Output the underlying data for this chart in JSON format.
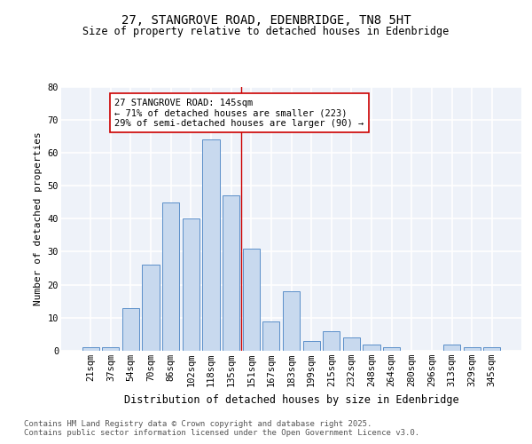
{
  "title": "27, STANGROVE ROAD, EDENBRIDGE, TN8 5HT",
  "subtitle": "Size of property relative to detached houses in Edenbridge",
  "xlabel": "Distribution of detached houses by size in Edenbridge",
  "ylabel": "Number of detached properties",
  "categories": [
    "21sqm",
    "37sqm",
    "54sqm",
    "70sqm",
    "86sqm",
    "102sqm",
    "118sqm",
    "135sqm",
    "151sqm",
    "167sqm",
    "183sqm",
    "199sqm",
    "215sqm",
    "232sqm",
    "248sqm",
    "264sqm",
    "280sqm",
    "296sqm",
    "313sqm",
    "329sqm",
    "345sqm"
  ],
  "values": [
    1,
    1,
    13,
    26,
    45,
    40,
    64,
    47,
    31,
    9,
    18,
    3,
    6,
    4,
    2,
    1,
    0,
    0,
    2,
    1,
    1
  ],
  "bar_color": "#c8d9ee",
  "bar_edge_color": "#5b8fc9",
  "vline_index": 7.5,
  "vline_color": "#cc0000",
  "annotation_text": "27 STANGROVE ROAD: 145sqm\n← 71% of detached houses are smaller (223)\n29% of semi-detached houses are larger (90) →",
  "annotation_box_color": "#ffffff",
  "annotation_box_edge": "#cc0000",
  "ylim": [
    0,
    80
  ],
  "yticks": [
    0,
    10,
    20,
    30,
    40,
    50,
    60,
    70,
    80
  ],
  "background_color": "#eef2f9",
  "grid_color": "#ffffff",
  "footer_text": "Contains HM Land Registry data © Crown copyright and database right 2025.\nContains public sector information licensed under the Open Government Licence v3.0.",
  "title_fontsize": 10,
  "subtitle_fontsize": 8.5,
  "xlabel_fontsize": 8.5,
  "ylabel_fontsize": 8,
  "tick_fontsize": 7.5,
  "footer_fontsize": 6.5,
  "ann_fontsize": 7.5
}
